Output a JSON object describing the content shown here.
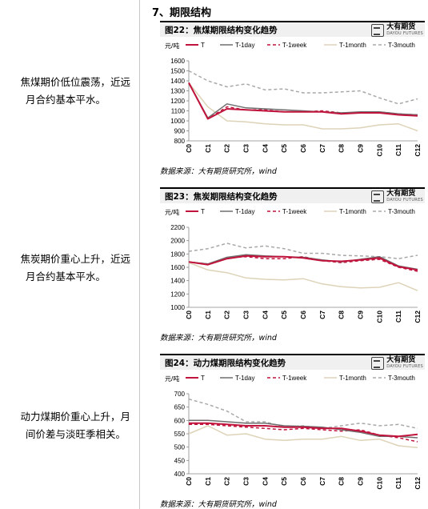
{
  "section_title": "7、期限结构",
  "sidebar": {
    "p1_line1": "焦煤期价低位震荡，近远",
    "p1_line2": "月合约基本平水。",
    "p2_line1": "焦炭期价重心上升，近远",
    "p2_line2": "月合约基本平水。",
    "p3_line1": "动力煤期价重心上升，月",
    "p3_line2": "间价差与淡旺季相关。"
  },
  "logo": {
    "cn": "大有期货",
    "en": "DAYOU FUTURES"
  },
  "charts": [
    {
      "title": "图22：焦煤期限结构变化趋势",
      "source": "数据来源：大有期货研究所，wind"
    },
    {
      "title": "图23：焦炭期限结构变化趋势",
      "source": "数据来源：大有期货研究所，wind"
    },
    {
      "title": "图24：动力煤期限结构变化趋势",
      "source": "数据来源：大有期货研究所，wind"
    }
  ],
  "colors": {
    "T": "#c0143c",
    "T-1day": "#6e6e6e",
    "T-1week": "#c0143c",
    "T-1month": "#ddd3b8",
    "T-3mouth": "#a8a8a8"
  },
  "chart_data": [
    {
      "type": "line",
      "title": "图22：焦煤期限结构变化趋势",
      "ylabel": "元/吨",
      "ylim": [
        800,
        1600
      ],
      "yticks": [
        800,
        900,
        1000,
        1100,
        1200,
        1300,
        1400,
        1500,
        1600
      ],
      "categories": [
        "C0",
        "C1",
        "C2",
        "C3",
        "C4",
        "C5",
        "C6",
        "C7",
        "C8",
        "C9",
        "C10",
        "C11",
        "C12"
      ],
      "series": [
        {
          "name": "T",
          "values": [
            1380,
            1020,
            1120,
            1110,
            1100,
            1090,
            1090,
            1090,
            1070,
            1080,
            1080,
            1060,
            1050
          ]
        },
        {
          "name": "T-1day",
          "values": [
            1380,
            1030,
            1170,
            1130,
            1120,
            1110,
            1100,
            1090,
            1080,
            1090,
            1090,
            1070,
            1060
          ]
        },
        {
          "name": "T-1week",
          "values": [
            1380,
            1020,
            1140,
            1110,
            1110,
            1090,
            1090,
            1100,
            1080,
            1080,
            1090,
            1070,
            1060
          ]
        },
        {
          "name": "T-1month",
          "values": [
            1380,
            1140,
            1000,
            990,
            970,
            960,
            960,
            920,
            920,
            930,
            960,
            970,
            900
          ]
        },
        {
          "name": "T-3mouth",
          "values": [
            1500,
            1400,
            1340,
            1370,
            1310,
            1320,
            1280,
            1280,
            1290,
            1300,
            1230,
            1170,
            1220
          ]
        }
      ]
    },
    {
      "type": "line",
      "title": "图23：焦炭期限结构变化趋势",
      "ylabel": "元/吨",
      "ylim": [
        1000,
        2200
      ],
      "yticks": [
        1000,
        1200,
        1400,
        1600,
        1800,
        2000,
        2200
      ],
      "categories": [
        "C0",
        "C1",
        "C2",
        "C3",
        "C4",
        "C5",
        "C6",
        "C7",
        "C8",
        "C9",
        "C10",
        "C11",
        "C12"
      ],
      "series": [
        {
          "name": "T",
          "values": [
            1680,
            1640,
            1730,
            1770,
            1760,
            1760,
            1740,
            1700,
            1690,
            1710,
            1740,
            1610,
            1560
          ]
        },
        {
          "name": "T-1day",
          "values": [
            1680,
            1650,
            1750,
            1790,
            1770,
            1760,
            1750,
            1710,
            1680,
            1720,
            1760,
            1620,
            1570
          ]
        },
        {
          "name": "T-1week",
          "values": [
            1680,
            1650,
            1740,
            1760,
            1730,
            1730,
            1760,
            1700,
            1670,
            1700,
            1720,
            1600,
            1540
          ]
        },
        {
          "name": "T-1month",
          "values": [
            1670,
            1560,
            1520,
            1440,
            1420,
            1410,
            1430,
            1350,
            1310,
            1290,
            1300,
            1370,
            1250
          ]
        },
        {
          "name": "T-3mouth",
          "values": [
            1840,
            1880,
            1960,
            1890,
            1920,
            1880,
            1810,
            1810,
            1780,
            1770,
            1760,
            1730,
            1780
          ]
        }
      ]
    },
    {
      "type": "line",
      "title": "图24：动力煤期限结构变化趋势",
      "ylabel": "元/吨",
      "ylim": [
        400,
        700
      ],
      "yticks": [
        400,
        450,
        500,
        550,
        600,
        650,
        700
      ],
      "categories": [
        "C0",
        "C1",
        "C2",
        "C3",
        "C4",
        "C5",
        "C6",
        "C7",
        "C8",
        "C9",
        "C10",
        "C11",
        "C12"
      ],
      "series": [
        {
          "name": "T",
          "values": [
            590,
            590,
            585,
            580,
            580,
            575,
            575,
            570,
            570,
            560,
            545,
            540,
            548
          ]
        },
        {
          "name": "T-1day",
          "values": [
            600,
            600,
            595,
            590,
            590,
            580,
            578,
            575,
            565,
            555,
            540,
            540,
            535
          ]
        },
        {
          "name": "T-1week",
          "values": [
            585,
            585,
            580,
            575,
            570,
            565,
            570,
            565,
            560,
            565,
            545,
            535,
            520
          ]
        },
        {
          "name": "T-1month",
          "values": [
            550,
            580,
            545,
            550,
            530,
            525,
            530,
            530,
            540,
            525,
            530,
            505,
            498
          ]
        },
        {
          "name": "T-3mouth",
          "values": [
            680,
            660,
            635,
            595,
            595,
            575,
            580,
            570,
            580,
            590,
            580,
            585,
            570
          ]
        }
      ]
    }
  ]
}
